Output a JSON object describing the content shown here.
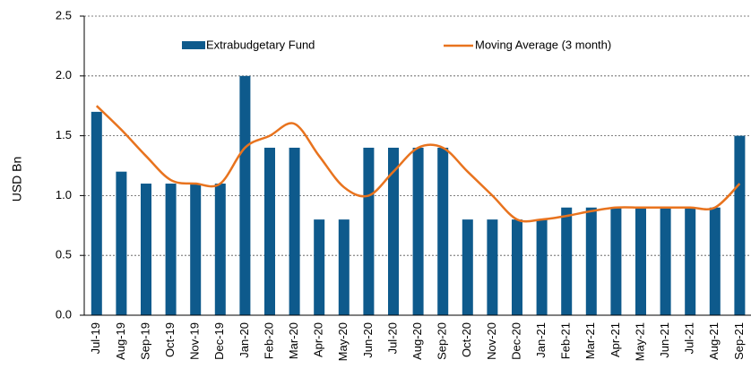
{
  "chart_data": {
    "type": "bar_line",
    "ylabel": "USD  Bn",
    "categories": [
      "Jul-19",
      "Aug-19",
      "Sep-19",
      "Oct-19",
      "Nov-19",
      "Dec-19",
      "Jan-20",
      "Feb-20",
      "Mar-20",
      "Apr-20",
      "May-20",
      "Jun-20",
      "Jul-20",
      "Aug-20",
      "Sep-20",
      "Oct-20",
      "Nov-20",
      "Dec-20",
      "Jan-21",
      "Feb-21",
      "Mar-21",
      "Apr-21",
      "May-21",
      "Jun-21",
      "Jul-21",
      "Aug-21",
      "Sep-21"
    ],
    "series": [
      {
        "name": "Extrabudgetary Fund",
        "type": "bar",
        "color": "#0e5a8c",
        "values": [
          1.7,
          1.2,
          1.1,
          1.1,
          1.1,
          1.1,
          2.0,
          1.4,
          1.4,
          0.8,
          0.8,
          1.4,
          1.4,
          1.4,
          1.4,
          0.8,
          0.8,
          0.8,
          0.8,
          0.9,
          0.9,
          0.9,
          0.9,
          0.9,
          0.9,
          0.9,
          1.5
        ]
      },
      {
        "name": "Moving Average (3 month)",
        "type": "line",
        "color": "#e8731e",
        "values": [
          1.75,
          1.55,
          1.33,
          1.13,
          1.1,
          1.1,
          1.4,
          1.5,
          1.6,
          1.33,
          1.07,
          1.0,
          1.2,
          1.4,
          1.4,
          1.2,
          1.0,
          0.8,
          0.8,
          0.83,
          0.87,
          0.9,
          0.9,
          0.9,
          0.9,
          0.9,
          1.1
        ]
      }
    ],
    "ylim": [
      0,
      2.5
    ],
    "yticks": [
      {
        "value": 0,
        "label": "0.0"
      },
      {
        "value": 0.5,
        "label": "0.5"
      },
      {
        "value": 1,
        "label": "1.0"
      },
      {
        "value": 1.5,
        "label": "1.5"
      },
      {
        "value": 2,
        "label": "2.0"
      },
      {
        "value": 2.5,
        "label": "2.5"
      }
    ],
    "grid": true
  }
}
